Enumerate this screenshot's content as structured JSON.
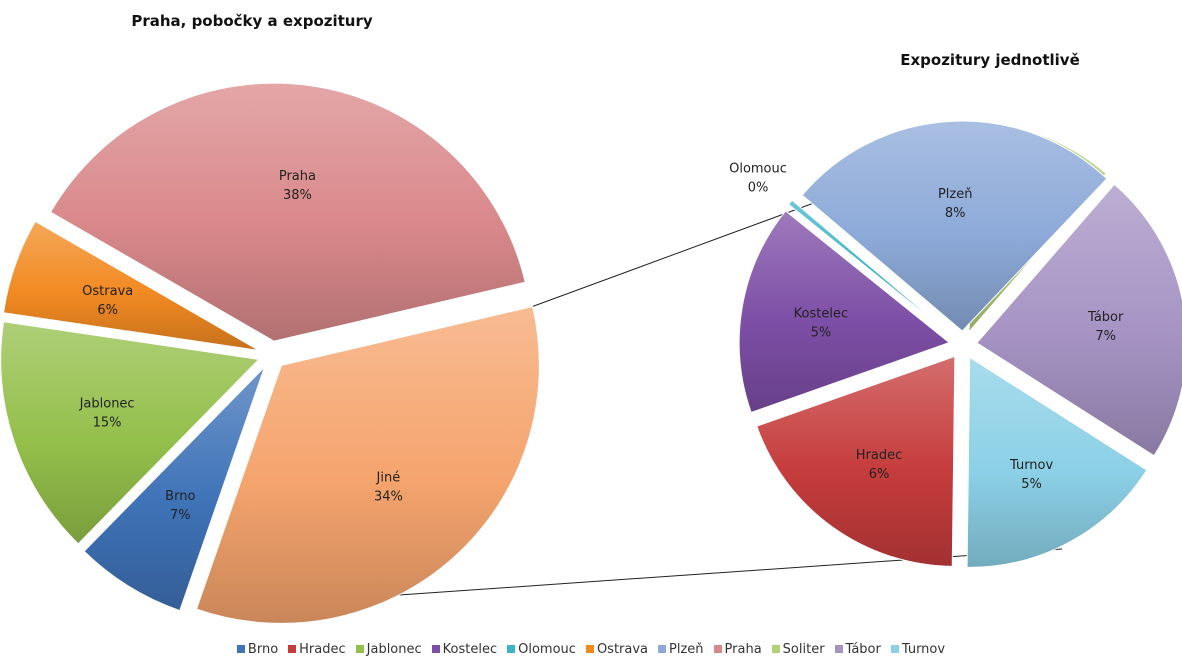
{
  "chart_data": [
    {
      "type": "pie",
      "title": "Praha, pobočky a expozitury",
      "slices": [
        {
          "label": "Praha",
          "value": 38,
          "display": "38%",
          "color": "#d9888a"
        },
        {
          "label": "Jiné",
          "value": 34,
          "display": "34%",
          "color": "#f5a46d"
        },
        {
          "label": "Brno",
          "value": 7,
          "display": "7%",
          "color": "#3f73b8"
        },
        {
          "label": "Jablonec",
          "value": 15,
          "display": "15%",
          "color": "#93bf4a"
        },
        {
          "label": "Ostrava",
          "value": 6,
          "display": "6%",
          "color": "#f28a22"
        }
      ]
    },
    {
      "type": "pie",
      "title": "Expozitury jednotlivě",
      "slices": [
        {
          "label": "Soliter",
          "value": 3,
          "display": "3%",
          "color": "#b3cf7a"
        },
        {
          "label": "Tábor",
          "value": 7,
          "display": "7%",
          "color": "#a693c4"
        },
        {
          "label": "Turnov",
          "value": 5,
          "display": "5%",
          "color": "#8bd0e6"
        },
        {
          "label": "Hradec",
          "value": 6,
          "display": "6%",
          "color": "#c63c3c"
        },
        {
          "label": "Kostelec",
          "value": 5,
          "display": "5%",
          "color": "#7d4ea6"
        },
        {
          "label": "Olomouc",
          "value": 0,
          "display": "0%",
          "color": "#3cb4cc"
        },
        {
          "label": "Plzeň",
          "value": 8,
          "display": "8%",
          "color": "#8ca9d8"
        }
      ]
    }
  ],
  "legend": {
    "placement": "bottom",
    "items": [
      {
        "label": "Brno",
        "color": "#3f73b8"
      },
      {
        "label": "Hradec",
        "color": "#c63c3c"
      },
      {
        "label": "Jablonec",
        "color": "#93bf4a"
      },
      {
        "label": "Kostelec",
        "color": "#7d4ea6"
      },
      {
        "label": "Olomouc",
        "color": "#3cb4cc"
      },
      {
        "label": "Ostrava",
        "color": "#f28a22"
      },
      {
        "label": "Plzeň",
        "color": "#8ca9d8"
      },
      {
        "label": "Praha",
        "color": "#d9888a"
      },
      {
        "label": "Soliter",
        "color": "#b3cf7a"
      },
      {
        "label": "Tábor",
        "color": "#a693c4"
      },
      {
        "label": "Turnov",
        "color": "#8bd0e6"
      }
    ]
  }
}
